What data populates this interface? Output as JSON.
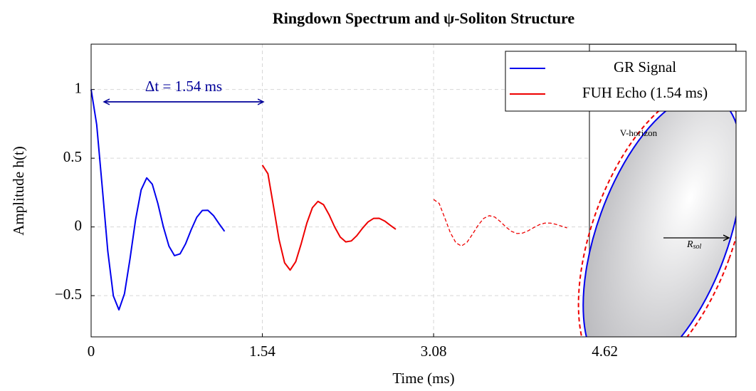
{
  "chart_data": {
    "type": "line",
    "title": "Ringdown Spectrum and ψ-Soliton Structure",
    "xlabel": "Time (ms)",
    "ylabel": "Amplitude h(t)",
    "xlim": [
      0,
      5.8
    ],
    "ylim": [
      -0.8,
      1.33
    ],
    "xticks": [
      0,
      1.54,
      3.08,
      4.62
    ],
    "yticks": [
      {
        "value": -0.5,
        "label": "−0.5"
      },
      0,
      0.5,
      1
    ],
    "grid": true,
    "legend": "upper right",
    "annotations": {
      "delta_t": "Δt = 1.54 ms",
      "horizon": "V-horizon",
      "radius": "R",
      "radius_sub": "sol"
    },
    "series": [
      {
        "name": "GR Signal",
        "color": "#0000ee",
        "dashed": false,
        "x": [
          0,
          0.05,
          0.1,
          0.15,
          0.2,
          0.25,
          0.3,
          0.35,
          0.4,
          0.45,
          0.5,
          0.55,
          0.6,
          0.65,
          0.7,
          0.75,
          0.8,
          0.85,
          0.9,
          0.95,
          1.0,
          1.05,
          1.1,
          1.15,
          1.2
        ],
        "values": [
          1,
          0.745,
          0.29,
          -0.177,
          -0.502,
          -0.603,
          -0.486,
          -0.231,
          0.054,
          0.27,
          0.357,
          0.311,
          0.171,
          0,
          -0.14,
          -0.209,
          -0.196,
          -0.122,
          -0.02,
          0.07,
          0.12,
          0.121,
          0.083,
          0.024,
          -0.032
        ]
      },
      {
        "name": "FUH Echo (1.54 ms)",
        "color": "#ee0000",
        "dashed": false,
        "x": [
          1.54,
          1.59,
          1.64,
          1.69,
          1.74,
          1.79,
          1.84,
          1.89,
          1.94,
          1.99,
          2.04,
          2.09,
          2.14,
          2.19,
          2.24,
          2.29,
          2.34,
          2.39,
          2.44,
          2.49,
          2.54,
          2.59,
          2.64,
          2.69,
          2.74
        ],
        "values": [
          0.45,
          0.387,
          0.151,
          -0.092,
          -0.261,
          -0.314,
          -0.253,
          -0.12,
          0.028,
          0.14,
          0.186,
          0.162,
          0.089,
          0,
          -0.073,
          -0.109,
          -0.102,
          -0.063,
          -0.01,
          0.036,
          0.062,
          0.063,
          0.043,
          0.012,
          -0.017
        ]
      },
      {
        "color": "#ee0000",
        "dashed": true,
        "x": [
          3.08,
          3.13,
          3.18,
          3.23,
          3.28,
          3.33,
          3.38,
          3.43,
          3.48,
          3.53,
          3.58,
          3.63,
          3.68,
          3.73,
          3.78,
          3.83,
          3.88,
          3.93,
          3.98,
          4.03,
          4.08,
          4.13,
          4.18,
          4.23,
          4.28
        ],
        "values": [
          0.2,
          0.171,
          0.067,
          -0.041,
          -0.115,
          -0.139,
          -0.112,
          -0.053,
          0.012,
          0.062,
          0.082,
          0.072,
          0.039,
          0,
          -0.032,
          -0.048,
          -0.045,
          -0.028,
          -0.005,
          0.016,
          0.028,
          0.028,
          0.019,
          0.006,
          -0.007
        ]
      }
    ]
  }
}
